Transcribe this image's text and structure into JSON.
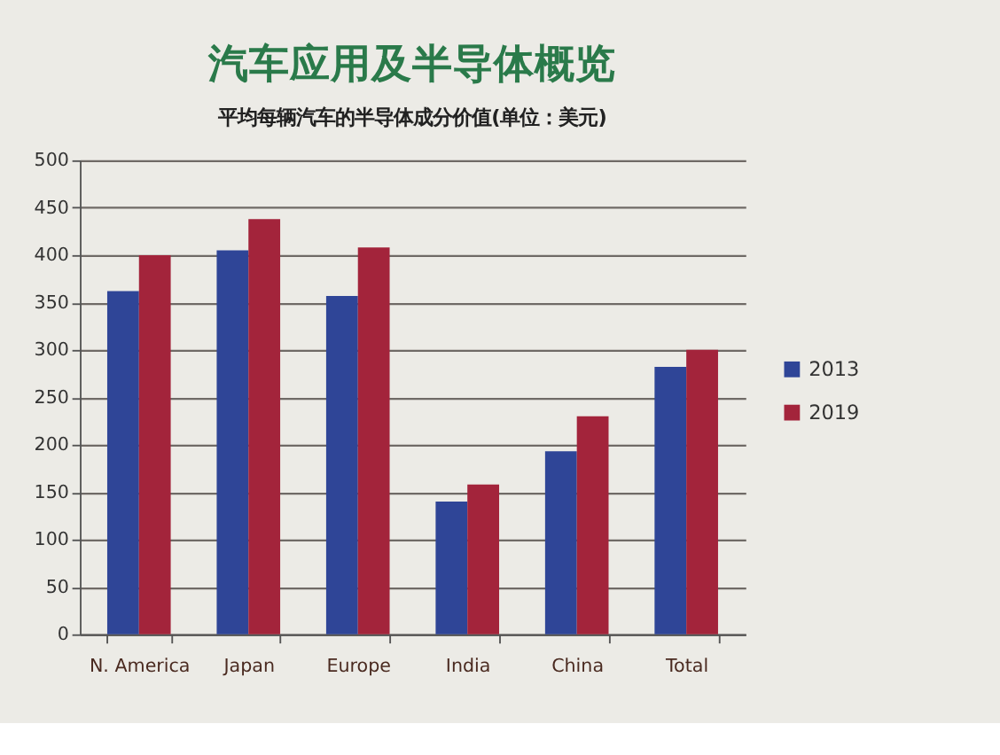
{
  "chart_data": {
    "type": "bar",
    "title": "汽车应用及半导体概览",
    "subtitle": "平均每辆汽车的半导体成分价值(单位：美元)",
    "categories": [
      "N. America",
      "Japan",
      "Europe",
      "India",
      "China",
      "Total"
    ],
    "series": [
      {
        "name": "2013",
        "color": "#2f4597",
        "values": [
          362,
          405,
          357,
          140,
          193,
          282
        ]
      },
      {
        "name": "2019",
        "color": "#a3243b",
        "values": [
          400,
          438,
          408,
          158,
          230,
          300
        ]
      }
    ],
    "ylim": [
      0,
      500
    ],
    "yticks": [
      0,
      50,
      100,
      150,
      200,
      250,
      300,
      350,
      400,
      450,
      500
    ],
    "grid": "y",
    "legend": "right"
  }
}
